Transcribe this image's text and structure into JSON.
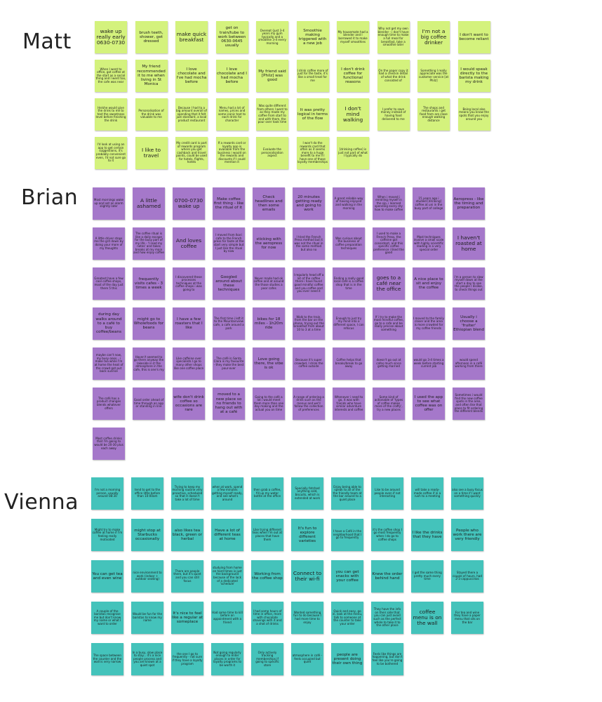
{
  "groups": [
    {
      "id": "matt",
      "name": "Matt",
      "note_color": "#d4f27d",
      "notes": [
        {
          "text": "wake up really early 0630-0730",
          "size": "l"
        },
        {
          "text": "brush teeth, shower, get dressed",
          "size": "m"
        },
        {
          "text": "make quick breakfast",
          "size": "l"
        },
        {
          "text": "get on train/tube to work between 0630-0645 usually",
          "size": "m"
        },
        {
          "text": "Overeat (just 3-4 years my gym typically and a smoothie 3-4 every morning",
          "size": "s"
        },
        {
          "text": "Smoothie making triggered with a new job",
          "size": "m"
        },
        {
          "text": "My housemate had a blender and I borrowed it to make myself smoothies",
          "size": "s"
        },
        {
          "text": "Why not get my own blender - i don't have enough time to make a full meal for breakfast, take a smoothie later",
          "size": "s"
        },
        {
          "text": "I'm not a big coffee drinker",
          "size": "l"
        },
        {
          "text": "I don't want to become reliant",
          "size": "m"
        },
        {
          "text": "When I went to office, got coffee at the start as a social thing and I went too, the cafe was near",
          "size": "s"
        },
        {
          "text": "My friend recommended it to me when living in St Monica",
          "size": "m"
        },
        {
          "text": "I love chocolate and I've had mocha before",
          "size": "m"
        },
        {
          "text": "I love chocolate and I had mocha before",
          "size": "m"
        },
        {
          "text": "My friend said [Philz] was good",
          "size": "m"
        },
        {
          "text": "I drink coffee more of just for the taste, it's like a small treat for me",
          "size": "s"
        },
        {
          "text": "I don't drink coffee for functional reasons",
          "size": "m"
        },
        {
          "text": "On the paper copy it had a checkin detail of what the drink consisted of",
          "size": "s"
        },
        {
          "text": "Something I really appreciate was the customer service [at Philz]",
          "size": "s"
        },
        {
          "text": "I would speak directly to the barista making my drink",
          "size": "m"
        },
        {
          "text": "He/she would give the drink to me to test the sweetness level before finishing the drink",
          "size": "s"
        },
        {
          "text": "Personalisation of the drink was valuable to me",
          "size": "s"
        },
        {
          "text": "Because I had to a big amount overall of spending that it felt just standard, a local product restaurant",
          "size": "s"
        },
        {
          "text": "Menu had a lot of names, prices and some iconic text to each drink for character",
          "size": "s"
        },
        {
          "text": "Was quite different from others I went to as they made my coffee from start to end with them, the pour over took time",
          "size": "s"
        },
        {
          "text": "It was pretty logical in terms of the flow",
          "size": "m"
        },
        {
          "text": "I don't mind walking",
          "size": "l"
        },
        {
          "text": "I prefer to save money instead of having food delivered to me",
          "size": "s"
        },
        {
          "text": "The shops and restaurants i get food from are close enough walking distance",
          "size": "s"
        },
        {
          "text": "Being local also means you know the spots that you enjoy around you",
          "size": "s"
        },
        {
          "text": "I'd look at using an app to get certain suggestions, it's probably convenient even, I'd not sure go to it",
          "size": "s"
        },
        {
          "text": "I like to travel",
          "size": "l"
        },
        {
          "text": "My credit card is part of rewards program where you get cashback and travel points, could be used for hotels, flights, hotels",
          "size": "s"
        },
        {
          "text": "If a rewards card or loyalty app is available from the business i would on the rewards and discounts if I could mention it",
          "size": "s"
        },
        {
          "text": "Evaluate the personalisation aspect",
          "size": "s"
        },
        {
          "text": "I won't do the rewards card that often as it seems more to a huge benefit to me if I have one of those loyalty memberships",
          "size": "s"
        },
        {
          "text": "[drinking coffee] is just not part of what I typically do",
          "size": "s"
        }
      ]
    },
    {
      "id": "brian",
      "name": "Brian",
      "note_color": "#a578ca",
      "notes": [
        {
          "text": "Most mornings wake up and set an alarm slightly later",
          "size": "s"
        },
        {
          "text": "A little ashamed",
          "size": "l"
        },
        {
          "text": "0700-0730 wake up",
          "size": "l"
        },
        {
          "text": "Make coffee first thing - like the ritual of it",
          "size": "m"
        },
        {
          "text": "Check headlines and then some emails",
          "size": "m"
        },
        {
          "text": "20 minutes getting ready and going to work",
          "size": "m"
        },
        {
          "text": "A great reliable way of having enjoyed and walking in the morning",
          "size": "s"
        },
        {
          "text": "When i moved i enrolling myself in the sip, i learned spending every dry how to make coffee",
          "size": "s"
        },
        {
          "text": "15 years ago i studied [drinking] coffee at uni in the busy part of college",
          "size": "s"
        },
        {
          "text": "Aeropress - like the timing and preparation",
          "size": "m"
        },
        {
          "text": "A little driver stops me the grit down by doing your more of my thoughts",
          "size": "s"
        },
        {
          "text": "The coffee ritual is like a daily escape for the busy part of my life - 'I read my notes' and takes breaks at my main and how enjoy coffee",
          "size": "s"
        },
        {
          "text": "And loves coffee",
          "size": "l"
        },
        {
          "text": "I moved from Ikari cafe to the French press for taste at the start very simple but I just like the ritual by now",
          "size": "s"
        },
        {
          "text": "sticking with the aeropress for now",
          "size": "m"
        },
        {
          "text": "I tried the French Press method but it was not the ritual in the same method but also no",
          "size": "s"
        },
        {
          "text": "Was curious about the business of coffee preparation techniques",
          "size": "s"
        },
        {
          "text": "I used to make a French Press, the caffeine got consistent, and this specific coffee preference i liked the good",
          "size": "s"
        },
        {
          "text": "Most techniques involve a small scale with highly scientific reading in a very special order",
          "size": "s"
        },
        {
          "text": "I haven't roasted at home",
          "size": "l"
        },
        {
          "text": "Greatest have a few cool coffee shops, most of the day just there 5 this",
          "size": "s"
        },
        {
          "text": "frequently visits cafes - 3 times a week",
          "size": "m"
        },
        {
          "text": "I discovered these processes techniques at the coffee shops i was going to",
          "size": "s"
        },
        {
          "text": "Googled around about these techniques",
          "size": "m"
        },
        {
          "text": "Never made had ok coffee and at around the those studies a poor cafes",
          "size": "s"
        },
        {
          "text": "I regularly head off a lot of the coffee there i have found good mindful coffee and you coffee and you ever need it",
          "size": "s"
        },
        {
          "text": "Finding a really good local café is a coffee shop that is in the time",
          "size": "s"
        },
        {
          "text": "goes to a café near the office",
          "size": "l"
        },
        {
          "text": "A nice place to sit and enjoy the coffee",
          "size": "m"
        },
        {
          "text": "i'm a person to slow myself down at the start a day to see the people I dislike, to check things out",
          "size": "s"
        },
        {
          "text": "during day walks around to a café to buy coffee/beans",
          "size": "m"
        },
        {
          "text": "might go to Wholefoods for beans",
          "size": "m"
        },
        {
          "text": "I have a few roasters that I like",
          "size": "m"
        },
        {
          "text": "The first time i left it to the Mountainview cafe, a cafe around a park",
          "size": "s"
        },
        {
          "text": "bikes for 18 miles - 1h20m ride",
          "size": "m"
        },
        {
          "text": "Walk to the train, from the bar on the phone, trying out the breakfast from about 10 to 3 at a time",
          "size": "s"
        },
        {
          "text": "Enough to just try my mind into a different space, I can refocus",
          "size": "s"
        },
        {
          "text": "If i try to make the most mindful coffee, go to a cafe and be really precise about something",
          "size": "s"
        },
        {
          "text": "I moved to the family closer and the area is more crowded for my coffee friends",
          "size": "s"
        },
        {
          "text": "Usually i choose a 'fruiter' Ethiopian blend",
          "size": "m"
        },
        {
          "text": "maybe can't now, my busy ones... i make tea while I'm at home the heat of the crowd got put back sunrise",
          "size": "s"
        },
        {
          "text": "Haven't seemed to go there anyway the lakeside in it the atmosphere in the cafe, this is one's my",
          "size": "s"
        },
        {
          "text": "Like caffeine over specialists I go to many other shops like one coffee place",
          "size": "s"
        },
        {
          "text": "The café in Santa Clara is my favourite - they make the best pour-over",
          "size": "s"
        },
        {
          "text": "Love going there, the vibe is ok",
          "size": "m"
        },
        {
          "text": "Because it's super crowded, I drink the coffee outside",
          "size": "s"
        },
        {
          "text": "Coffee helps that breaks/break to go away",
          "size": "s"
        },
        {
          "text": "doesn't go out at cafes much since getting married",
          "size": "s"
        },
        {
          "text": "would go 3-4 times a week before starting current job",
          "size": "s"
        },
        {
          "text": "would spend afternoon in a café working from there",
          "size": "s"
        },
        {
          "text": "The café has a product changes blends whatever offers",
          "size": "s"
        },
        {
          "text": "Good order ahead of time through an app or standing in line",
          "size": "s"
        },
        {
          "text": "wife don't drink coffee so occasions are rare",
          "size": "m"
        },
        {
          "text": "moved to a new place so no friends to hang out with at a café",
          "size": "m"
        },
        {
          "text": "Going to the café a lot i would meet them more than one day making and the actual you on time",
          "size": "s"
        },
        {
          "text": "A range of ordering a drink such as the menus and we'll follow the collection of preferences",
          "size": "s"
        },
        {
          "text": "Whenever i need to go, it was with friends who have similar adventure interests and coffee",
          "size": "s"
        },
        {
          "text": "Some kind of actionable of 'types of coffee makes more of the crafty', try a new places",
          "size": "s"
        },
        {
          "text": "I used the app to see what coffee was on offer",
          "size": "m"
        },
        {
          "text": "Sometimes i would find the new coffee spots in the area, and often like that place to fit ordering the different blends",
          "size": "s"
        },
        {
          "text": "Most coffee drinks that I'm going to would be 20-30 plus each away",
          "size": "s"
        }
      ]
    },
    {
      "id": "vienna",
      "name": "Vienna",
      "note_color": "#44c3bb",
      "notes": [
        {
          "text": "I'm not a morning person, usually around 08:30",
          "size": "s"
        },
        {
          "text": "tend to get to the office little before than 10:00am",
          "size": "s"
        },
        {
          "text": "Trying to keep my morning routine very proactive, scheduled so that it doesn't take a lot of time",
          "size": "s"
        },
        {
          "text": "when at work, spend a few minutes getting myself ready, and see what's around",
          "size": "s"
        },
        {
          "text": "then grab a coffee, fill up my water bottle at the office",
          "size": "s"
        },
        {
          "text": "Specially fetched anything cold, biscuits, which is extended at work",
          "size": "s"
        },
        {
          "text": "Enjoy being able to speak to all of the the friendly team at the bar around to a quiet place",
          "size": "s"
        },
        {
          "text": "Like to be around people even if not interacting",
          "size": "s"
        },
        {
          "text": "will take a ready-made coffee if in a rush to a meeting",
          "size": "s"
        },
        {
          "text": "also see a busy focus on a time if I want something quickly",
          "size": "s"
        },
        {
          "text": "Might try to make coffee at home if I'm feeling really motivated",
          "size": "s"
        },
        {
          "text": "might stop at Starbucks occasionally",
          "size": "m"
        },
        {
          "text": "also likes tea black, green or herbal",
          "size": "m"
        },
        {
          "text": "Have a lot of different teas at home",
          "size": "m"
        },
        {
          "text": "Like trying different teas when I'm out at places that have them",
          "size": "s"
        },
        {
          "text": "It's fun to explore different varieties",
          "size": "m"
        },
        {
          "text": "I have a Café in the neighborhood that I go to frequently",
          "size": "s"
        },
        {
          "text": "it's the coffee shop I go most frequently when I do go to coffee shops",
          "size": "s"
        },
        {
          "text": "I like the drinks that they have",
          "size": "m"
        },
        {
          "text": "People who work there are very friendly",
          "size": "m"
        },
        {
          "text": "You can get tea and even wine",
          "size": "m"
        },
        {
          "text": "nice environment to work (indoor + outdoor seating)",
          "size": "s"
        },
        {
          "text": "There are people there, but it's quiet and you can still focus",
          "size": "s"
        },
        {
          "text": "studying from home on hard times is just the background because of the lack of a dedicated 'schedule'",
          "size": "s"
        },
        {
          "text": "Working from the coffee shop",
          "size": "m"
        },
        {
          "text": "Connect to their wi-fi",
          "size": "l"
        },
        {
          "text": "you can get snacks with your coffee",
          "size": "m"
        },
        {
          "text": "Knew the order behind hand",
          "size": "m"
        },
        {
          "text": "I get the same thing pretty much every time",
          "size": "s"
        },
        {
          "text": "Stayed there a couple of hours, had 2-3 cappuccinos",
          "size": "s"
        },
        {
          "text": "A couple of the baristas recognise me but don't know my name or what I want to order",
          "size": "s"
        },
        {
          "text": "Would be fun for the baristas to know my name",
          "size": "s"
        },
        {
          "text": "It's nice to feel like a regular at someplace",
          "size": "m"
        },
        {
          "text": "Had some time to kill before an appointment with a friend",
          "size": "s"
        },
        {
          "text": "I had some hours of time in office, more with chocolate shavings with it and a shot of drinks",
          "size": "s"
        },
        {
          "text": "Wanted something fun to do because I had more time to enjoy",
          "size": "s"
        },
        {
          "text": "Quick and easy, go in, look at the menu, talk to someone at the counter to take your order",
          "size": "s"
        },
        {
          "text": "They have the info on their side that you can just avoid such as the perfect whole to take it to the other place",
          "size": "s"
        },
        {
          "text": "coffee menu is on the wall",
          "size": "l"
        },
        {
          "text": "For tea and wine they have a paper menu that sits on the bar",
          "size": "s"
        },
        {
          "text": "The space between the counter and the wall is very narrow",
          "size": "s"
        },
        {
          "text": "In a busy, slow place to stay... it's a nice people process and you are known at a quiet spot",
          "size": "s"
        },
        {
          "text": "the one I go to frequently - not sure if they have a loyalty program",
          "size": "s"
        },
        {
          "text": "Not going regularly enough to enter places in order for loyalty programs to be worth it",
          "size": "s"
        },
        {
          "text": "Only actively tracking memberships if going to specific store",
          "size": "s"
        },
        {
          "text": "atmosphere in café - feels occupied but quiet",
          "size": "s"
        },
        {
          "text": "people are present doing their own thing",
          "size": "m"
        },
        {
          "text": "Feels like things are happening, but don't feel like you're going to be bothered",
          "size": "s"
        }
      ]
    }
  ]
}
